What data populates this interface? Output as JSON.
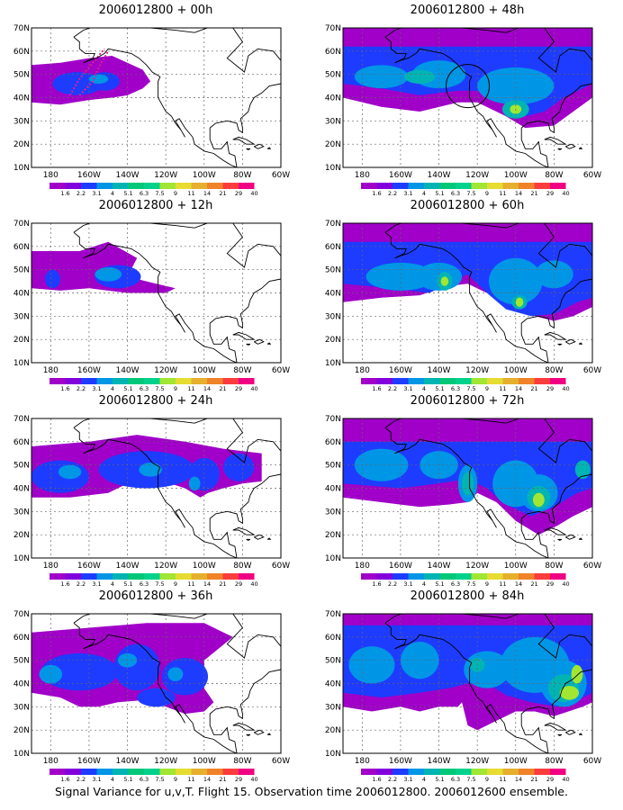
{
  "figure": {
    "caption": "Signal Variance for u,v,T. Flight 15. Observation time 2006012800. 2006012600 ensemble."
  },
  "axes": {
    "x_ticks": [
      "180",
      "160W",
      "140W",
      "120W",
      "100W",
      "80W",
      "60W"
    ],
    "y_ticks": [
      "10N",
      "20N",
      "30N",
      "40N",
      "50N",
      "60N",
      "70N"
    ],
    "lon_range": [
      -190,
      -60
    ],
    "lat_range": [
      10,
      70
    ]
  },
  "colorbar": {
    "labels": [
      "1.6",
      "2.2",
      "3.1",
      "4",
      "5.1",
      "6.3",
      "7.5",
      "9",
      "11",
      "14",
      "21",
      "29",
      "40"
    ],
    "colors": [
      "#a000c8",
      "#8200dc",
      "#1e3cff",
      "#0096e6",
      "#00b4b4",
      "#00c878",
      "#00d28c",
      "#a0e632",
      "#e6dc32",
      "#e6af2d",
      "#f08228",
      "#fa3c3c",
      "#f00082"
    ]
  },
  "panels": [
    {
      "title": "2006012800 + 00h",
      "col": 0,
      "row": 0
    },
    {
      "title": "2006012800 + 48h",
      "col": 1,
      "row": 0
    },
    {
      "title": "2006012800 + 12h",
      "col": 0,
      "row": 1
    },
    {
      "title": "2006012800 + 60h",
      "col": 1,
      "row": 1
    },
    {
      "title": "2006012800 + 24h",
      "col": 0,
      "row": 2
    },
    {
      "title": "2006012800 + 72h",
      "col": 1,
      "row": 2
    },
    {
      "title": "2006012800 + 36h",
      "col": 0,
      "row": 3
    },
    {
      "title": "2006012800 + 84h",
      "col": 1,
      "row": 3
    }
  ]
}
